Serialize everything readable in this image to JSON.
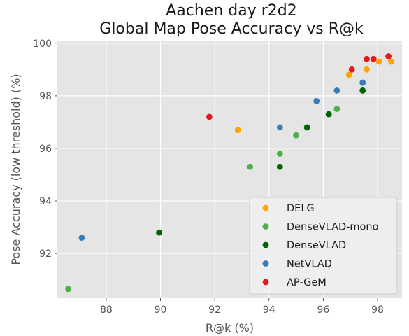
{
  "chart_data": {
    "type": "scatter",
    "title_lines": [
      "Aachen day r2d2",
      "Global Map Pose Accuracy vs R@k"
    ],
    "xlabel": "R@k (%)",
    "ylabel": "Pose Accuracy (low threshold) (%)",
    "xlim": [
      86.2,
      98.9
    ],
    "ylim": [
      90.3,
      100.1
    ],
    "xticks": [
      88,
      90,
      92,
      94,
      96,
      98
    ],
    "yticks": [
      92,
      94,
      96,
      98,
      100
    ],
    "grid": true,
    "legend_position": "lower-right",
    "series": [
      {
        "name": "DELG",
        "color": "#ffa500",
        "points": [
          [
            92.85,
            96.7
          ],
          [
            96.95,
            98.8
          ],
          [
            97.6,
            99.0
          ],
          [
            98.05,
            99.3
          ],
          [
            98.5,
            99.3
          ]
        ]
      },
      {
        "name": "DenseVLAD-mono",
        "color": "#4daf4a",
        "points": [
          [
            86.6,
            90.65
          ],
          [
            93.3,
            95.3
          ],
          [
            94.4,
            95.8
          ],
          [
            95.0,
            96.5
          ],
          [
            96.5,
            97.5
          ]
        ]
      },
      {
        "name": "DenseVLAD",
        "color": "#006400",
        "points": [
          [
            89.95,
            92.8
          ],
          [
            94.4,
            95.3
          ],
          [
            95.4,
            96.8
          ],
          [
            96.2,
            97.3
          ],
          [
            97.45,
            98.2
          ]
        ]
      },
      {
        "name": "NetVLAD",
        "color": "#377eb8",
        "points": [
          [
            87.1,
            92.6
          ],
          [
            94.4,
            96.8
          ],
          [
            95.75,
            97.8
          ],
          [
            96.5,
            98.2
          ],
          [
            97.45,
            98.5
          ]
        ]
      },
      {
        "name": "AP-GeM",
        "color": "#e41a1c",
        "points": [
          [
            91.8,
            97.2
          ],
          [
            97.05,
            99.0
          ],
          [
            97.6,
            99.4
          ],
          [
            97.85,
            99.4
          ],
          [
            98.4,
            99.5
          ]
        ]
      }
    ]
  }
}
